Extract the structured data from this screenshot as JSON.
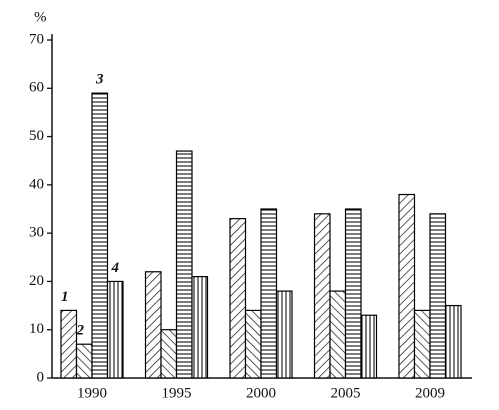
{
  "chart_data": {
    "type": "bar",
    "y_label": "%",
    "categories": [
      "1990",
      "1995",
      "2000",
      "2005",
      "2009"
    ],
    "series": [
      {
        "name": "1",
        "color": "#000000",
        "pattern": "diagonal-right",
        "values": [
          14,
          22,
          33,
          34,
          38
        ]
      },
      {
        "name": "2",
        "color": "#000000",
        "pattern": "diagonal-left",
        "values": [
          7,
          10,
          14,
          18,
          14
        ]
      },
      {
        "name": "3",
        "color": "#000000",
        "pattern": "horizontal",
        "values": [
          59,
          47,
          35,
          35,
          34
        ]
      },
      {
        "name": "4",
        "color": "#000000",
        "pattern": "vertical",
        "values": [
          20,
          21,
          18,
          13,
          15
        ]
      }
    ],
    "ylim": [
      0,
      70
    ],
    "yticks": [
      0,
      10,
      20,
      30,
      40,
      50,
      60,
      70
    ],
    "grid": false
  }
}
